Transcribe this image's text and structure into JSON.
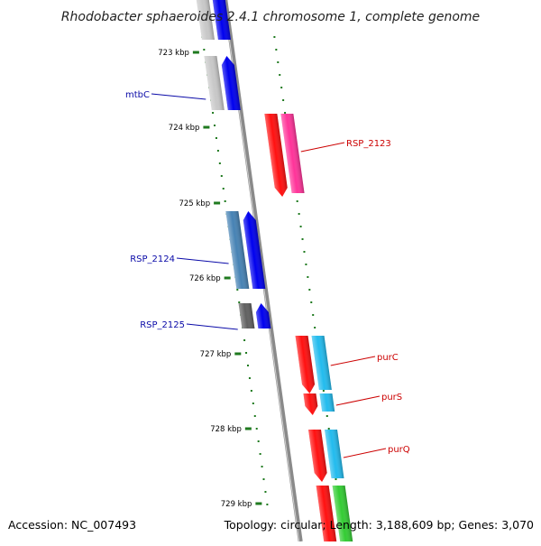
{
  "title": "Rhodobacter sphaeroides 2.4.1 chromosome 1, complete genome",
  "footer": {
    "accession": "Accession: NC_007493",
    "summary": "Topology: circular; Length: 3,188,609 bp; Genes: 3,070"
  },
  "colors": {
    "backbone": "#8a8a8a",
    "tick": "#1f7a1f",
    "forward_label": "#0a0aa8",
    "reverse_label": "#cc0000"
  },
  "ticks": [
    {
      "label": "723 kbp"
    },
    {
      "label": "724 kbp"
    },
    {
      "label": "725 kbp"
    },
    {
      "label": "726 kbp"
    },
    {
      "label": "727 kbp"
    },
    {
      "label": "728 kbp"
    },
    {
      "label": "729 kbp"
    }
  ],
  "genes": [
    {
      "name": "",
      "strand": "forward",
      "gene_color": "#c8c8c8",
      "cds_color": "#0000ee"
    },
    {
      "name": "mtbC",
      "strand": "forward",
      "gene_color": "#c8c8c8",
      "cds_color": "#0000ee"
    },
    {
      "name": "RSP_2123",
      "strand": "reverse",
      "gene_color": "#ff1010",
      "cds_color": "#ff3399"
    },
    {
      "name": "RSP_2124",
      "strand": "forward",
      "gene_color": "#4682b4",
      "cds_color": "#0000ee"
    },
    {
      "name": "RSP_2125",
      "strand": "forward",
      "gene_color": "#606060",
      "cds_color": "#0000ee"
    },
    {
      "name": "purC",
      "strand": "reverse",
      "gene_color": "#ff1010",
      "cds_color": "#22bbee"
    },
    {
      "name": "purS",
      "strand": "reverse",
      "gene_color": "#ff1010",
      "cds_color": "#22bbee"
    },
    {
      "name": "purQ",
      "strand": "reverse",
      "gene_color": "#ff1010",
      "cds_color": "#22bbee"
    },
    {
      "name": "",
      "strand": "reverse",
      "gene_color": "#ff1010",
      "cds_color": "#33cc33"
    }
  ]
}
